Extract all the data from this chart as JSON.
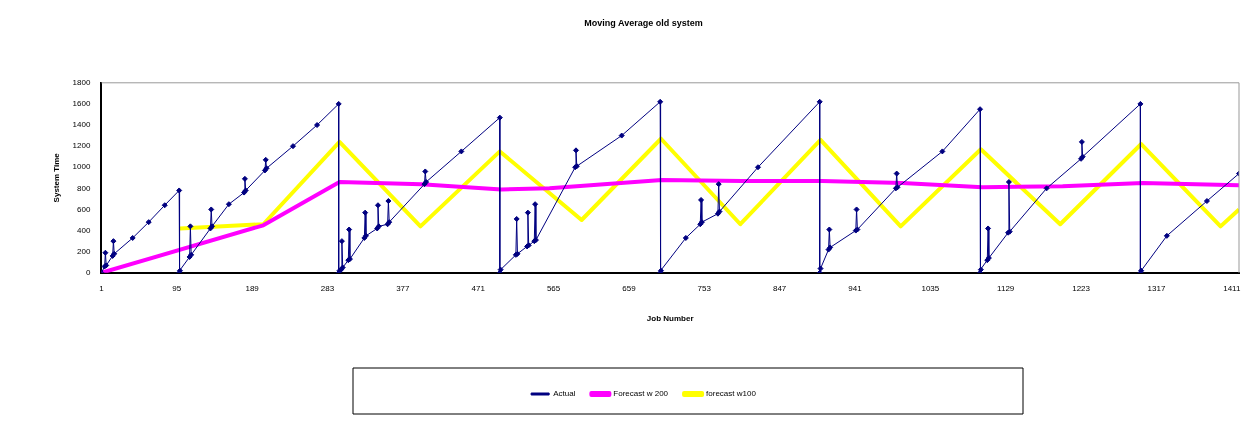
{
  "chart_data": {
    "type": "line",
    "title": "Moving Average old system",
    "xlabel": "Job Number",
    "ylabel": "System Time",
    "xlim": [
      1,
      1420
    ],
    "xticks": [
      1,
      95,
      189,
      283,
      377,
      471,
      565,
      659,
      753,
      847,
      941,
      1035,
      1129,
      1223,
      1317,
      1411
    ],
    "ylim": [
      0,
      1800
    ],
    "yticks": [
      0,
      200,
      400,
      600,
      800,
      1000,
      1200,
      1400,
      1600,
      1800
    ],
    "grid": false,
    "legend": "bottom",
    "series": [
      {
        "name": "Actual",
        "color": "#000080",
        "marker": "diamond",
        "x": [
          1,
          5,
          6,
          7,
          15,
          16,
          17,
          40,
          60,
          80,
          98,
          98,
          99,
          111,
          112,
          113,
          137,
          138,
          139,
          160,
          179,
          180,
          181,
          205,
          206,
          207,
          240,
          270,
          297,
          297,
          298,
          300,
          301,
          302,
          309,
          310,
          311,
          329,
          330,
          331,
          345,
          346,
          347,
          358,
          359,
          360,
          404,
          405,
          406,
          450,
          498,
          498,
          499,
          518,
          519,
          520,
          532,
          533,
          534,
          541,
          542,
          543,
          592,
          593,
          594,
          650,
          698,
          698,
          699,
          730,
          748,
          749,
          750,
          770,
          771,
          772,
          820,
          897,
          897,
          898,
          908,
          909,
          910,
          942,
          943,
          944,
          992,
          993,
          994,
          1050,
          1097,
          1097,
          1098,
          1106,
          1107,
          1108,
          1132,
          1133,
          1134,
          1180,
          1223,
          1224,
          1225,
          1297,
          1297,
          1298,
          1330,
          1380,
          1420
        ],
        "values": [
          0,
          60,
          190,
          70,
          160,
          300,
          180,
          330,
          480,
          640,
          780,
          0,
          20,
          150,
          440,
          170,
          420,
          600,
          440,
          650,
          760,
          890,
          780,
          970,
          1070,
          990,
          1200,
          1400,
          1600,
          0,
          20,
          30,
          300,
          50,
          120,
          410,
          130,
          330,
          570,
          350,
          420,
          640,
          440,
          460,
          680,
          480,
          840,
          960,
          860,
          1150,
          1470,
          0,
          30,
          170,
          510,
          180,
          250,
          570,
          260,
          300,
          650,
          310,
          1000,
          1160,
          1010,
          1300,
          1620,
          0,
          20,
          330,
          460,
          690,
          480,
          560,
          840,
          580,
          1000,
          1620,
          0,
          40,
          220,
          410,
          240,
          400,
          600,
          410,
          800,
          940,
          810,
          1150,
          1550,
          0,
          30,
          120,
          420,
          140,
          380,
          860,
          390,
          800,
          1080,
          1240,
          1100,
          1600,
          0,
          20,
          350,
          680,
          940
        ]
      },
      {
        "name": "Forecast w 200",
        "color": "#ff00ff",
        "marker": "none",
        "x": [
          1,
          203,
          298,
          400,
          500,
          560,
          700,
          800,
          900,
          1000,
          1100,
          1200,
          1300,
          1420
        ],
        "values": [
          0,
          450,
          860,
          840,
          790,
          800,
          880,
          870,
          870,
          850,
          810,
          820,
          850,
          830
        ]
      },
      {
        "name": "forecast w100",
        "color": "#ffff00",
        "marker": "none",
        "x": [
          99,
          203,
          298,
          399,
          498,
          600,
          699,
          798,
          898,
          998,
          1098,
          1197,
          1298,
          1397,
          1420
        ],
        "values": [
          420,
          460,
          1240,
          440,
          1150,
          500,
          1270,
          460,
          1260,
          440,
          1170,
          460,
          1220,
          440,
          600
        ]
      }
    ]
  }
}
